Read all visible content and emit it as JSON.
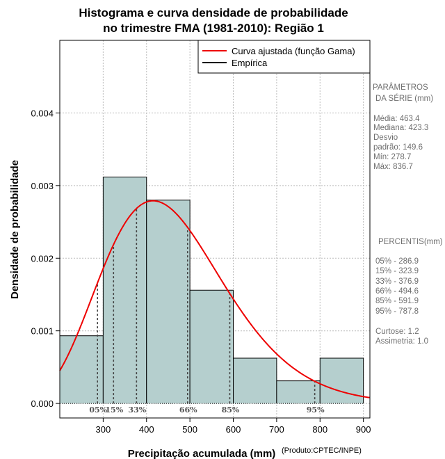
{
  "chart_data": {
    "type": "bar",
    "title_line1": "Histograma e curva densidade de probabilidade",
    "title_line2": "no trimestre FMA (1981-2010): Região 1",
    "xlabel": "Precipitação acumulada (mm)",
    "ylabel": "Densidade de probabilidade",
    "credit": "(Produto:CPTEC/INPE)",
    "xlim": [
      200,
      915
    ],
    "ylim": [
      -0.0002,
      0.005
    ],
    "x_ticks": [
      300,
      400,
      500,
      600,
      700,
      800,
      900
    ],
    "x_tick_labels": [
      "300",
      "400",
      "500",
      "600",
      "700",
      "800",
      "900"
    ],
    "y_ticks": [
      0.0,
      0.001,
      0.002,
      0.003,
      0.004
    ],
    "y_tick_labels": [
      "0.000",
      "0.001",
      "0.002",
      "0.003",
      "0.004"
    ],
    "grid_x": [
      300,
      400,
      500,
      600,
      700,
      800,
      900
    ],
    "grid_y": [
      0.0,
      0.001,
      0.002,
      0.003,
      0.004
    ],
    "bins": [
      {
        "x0": 200,
        "x1": 300,
        "density": 0.000933
      },
      {
        "x0": 300,
        "x1": 400,
        "density": 0.003117
      },
      {
        "x0": 400,
        "x1": 500,
        "density": 0.0028
      },
      {
        "x0": 500,
        "x1": 600,
        "density": 0.00156
      },
      {
        "x0": 600,
        "x1": 700,
        "density": 0.000623
      },
      {
        "x0": 700,
        "x1": 800,
        "density": 0.000311
      },
      {
        "x0": 800,
        "x1": 900,
        "density": 0.000623
      }
    ],
    "gamma_fit": {
      "shape": 9.59,
      "scale": 48.31,
      "x_range": [
        200,
        915
      ]
    },
    "percentile_lines": [
      {
        "label": "05%",
        "value": 286.9
      },
      {
        "label": "15%",
        "value": 323.9
      },
      {
        "label": "33%",
        "value": 376.9
      },
      {
        "label": "66%",
        "value": 494.6
      },
      {
        "label": "85%",
        "value": 591.9
      },
      {
        "label": "95%",
        "value": 787.8
      }
    ],
    "legend": {
      "position": "top-right",
      "entries": [
        {
          "label": "Curva ajustada (função Gama)",
          "color": "#ee0000"
        },
        {
          "label": "Empírica",
          "color": "#000000"
        }
      ]
    },
    "colors": {
      "bar_fill": "#b5cfce",
      "curve": "#ee0000",
      "grid": "#bbbbbb"
    }
  },
  "side_panel": {
    "params_title_1": "PARÂMETROS",
    "params_title_2": "DA SÉRIE (mm)",
    "media": "Média:  463.4",
    "mediana": "Mediana:  423.3",
    "desvio_1": "Desvio",
    "desvio_2": "padrão:  149.6",
    "min": "Mín:  278.7",
    "max": "Máx:  836.7",
    "percentis_title": "PERCENTIS(mm)",
    "p05": "05% -   286.9",
    "p15": "15% -   323.9",
    "p33": "33% -   376.9",
    "p66": "66% -   494.6",
    "p85": "85% -   591.9",
    "p95": "95% -   787.8",
    "curtose": "Curtose:  1.2",
    "assimetria": "Assimetria:  1.0"
  }
}
